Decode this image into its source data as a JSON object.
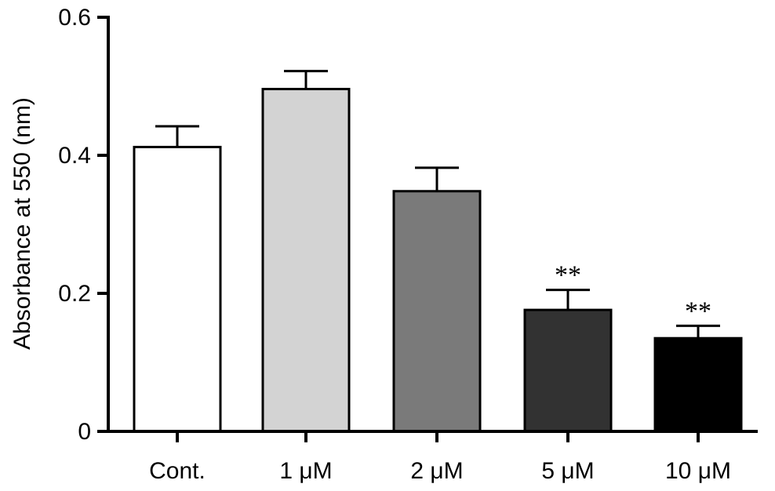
{
  "chart_data": {
    "type": "bar",
    "title": "",
    "xlabel": "",
    "ylabel": "Absorbance at 550 (nm)",
    "ylim": [
      0,
      0.6
    ],
    "yticks": [
      "0",
      "0.2",
      "0.4",
      "0.6"
    ],
    "grid": false,
    "legend": "none",
    "categories": [
      "Cont.",
      "1 μM",
      "2 μM",
      "5 μM",
      "10 μM"
    ],
    "values": [
      0.412,
      0.496,
      0.348,
      0.176,
      0.135
    ],
    "errors": [
      0.03,
      0.026,
      0.034,
      0.029,
      0.018
    ],
    "significance": [
      "",
      "",
      "",
      "**",
      "**"
    ],
    "colors": [
      "#ffffff",
      "#d3d3d3",
      "#7a7a7a",
      "#323232",
      "#000000"
    ]
  }
}
